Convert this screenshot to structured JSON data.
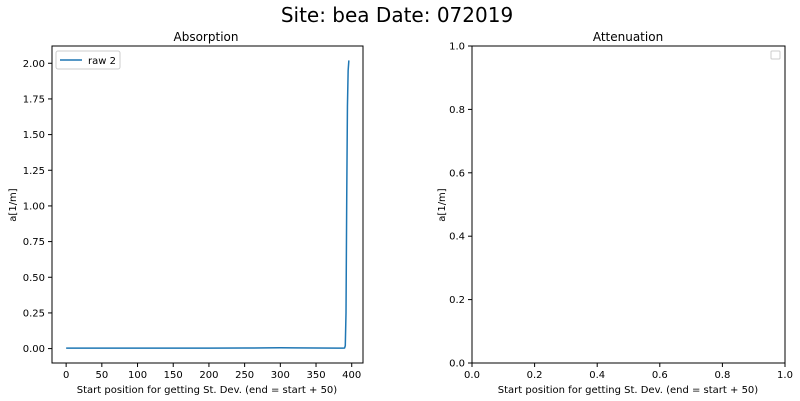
{
  "figure": {
    "suptitle": "Site: bea Date: 072019"
  },
  "chart_data": [
    {
      "type": "line",
      "title": "Absorption",
      "xlabel": "Start position for getting St. Dev. (end = start + 50)",
      "ylabel": "a[1/m]",
      "xlim": [
        -19.8,
        415.8
      ],
      "ylim": [
        -0.101,
        2.121
      ],
      "xticks": [
        0,
        50,
        100,
        150,
        200,
        250,
        300,
        350,
        400
      ],
      "yticks": [
        0.0,
        0.25,
        0.5,
        0.75,
        1.0,
        1.25,
        1.5,
        1.75,
        2.0
      ],
      "xtick_labels": [
        "0",
        "50",
        "100",
        "150",
        "200",
        "250",
        "300",
        "350",
        "400"
      ],
      "ytick_labels": [
        "0.00",
        "0.25",
        "0.50",
        "0.75",
        "1.00",
        "1.25",
        "1.50",
        "1.75",
        "2.00"
      ],
      "legend": "top-left",
      "grid": false,
      "series": [
        {
          "name": "raw 2",
          "color": "#1f77b4",
          "x": [
            0,
            50,
            100,
            150,
            200,
            250,
            280,
            300,
            320,
            350,
            380,
            388,
            390,
            391,
            392,
            393,
            394,
            395,
            396
          ],
          "y": [
            0.003,
            0.003,
            0.003,
            0.003,
            0.003,
            0.004,
            0.005,
            0.006,
            0.005,
            0.004,
            0.003,
            0.003,
            0.004,
            0.02,
            0.25,
            1.05,
            1.7,
            1.95,
            2.02
          ]
        }
      ]
    },
    {
      "type": "line",
      "title": "Attenuation",
      "xlabel": "Start position for getting St. Dev. (end = start + 50)",
      "ylabel": "a[1/m]",
      "xlim": [
        0,
        1
      ],
      "ylim": [
        0,
        1
      ],
      "xticks": [
        0,
        0.2,
        0.4,
        0.6,
        0.8,
        1.0
      ],
      "yticks": [
        0,
        0.2,
        0.4,
        0.6,
        0.8,
        1.0
      ],
      "xtick_labels": [
        "0.0",
        "0.2",
        "0.4",
        "0.6",
        "0.8",
        "1.0"
      ],
      "ytick_labels": [
        "0.0",
        "0.2",
        "0.4",
        "0.6",
        "0.8",
        "1.0"
      ],
      "legend": "top-right",
      "grid": false,
      "series": []
    }
  ]
}
